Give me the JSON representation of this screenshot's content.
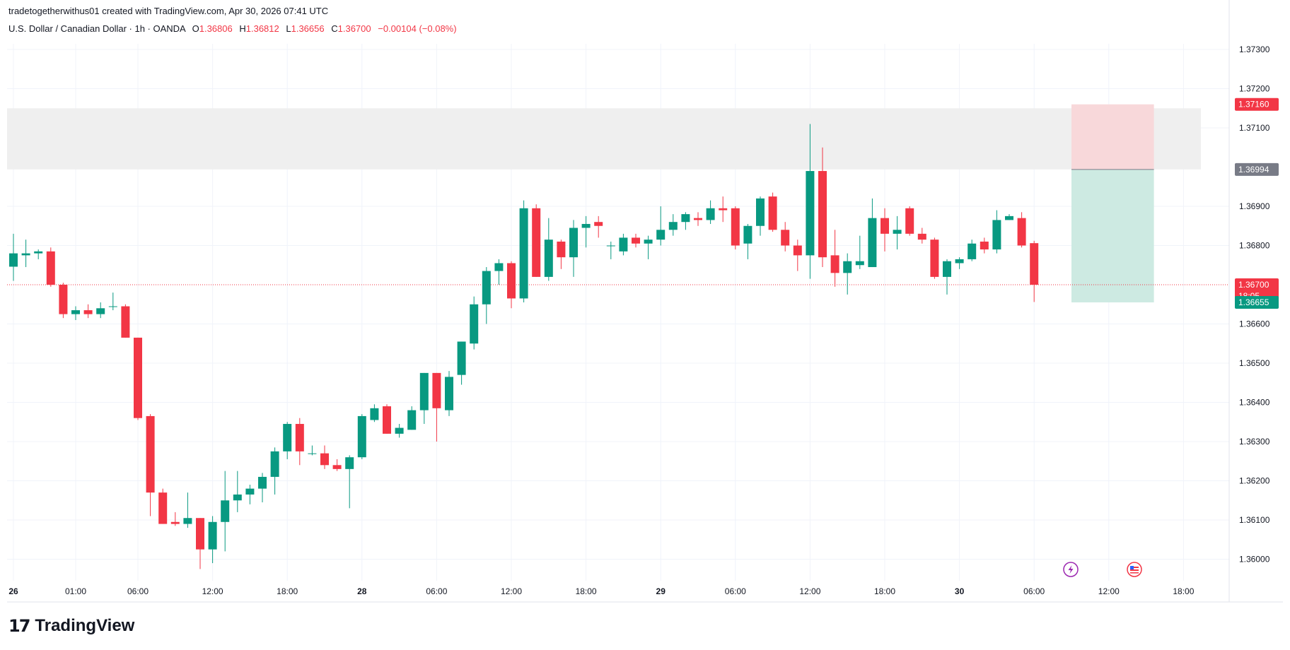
{
  "header": {
    "credit": "tradetogetherwithus01 created with TradingView.com, Apr 30, 2026 07:41 UTC"
  },
  "symbol": {
    "name": "U.S. Dollar / Canadian Dollar · 1h · OANDA",
    "o_label": "O",
    "o": "1.36806",
    "h_label": "H",
    "h": "1.36812",
    "l_label": "L",
    "l": "1.36656",
    "c_label": "C",
    "c": "1.36700",
    "change": "−0.00104 (−0.08%)"
  },
  "footer": {
    "brand": "TradingView"
  },
  "colors": {
    "up": "#089981",
    "down": "#f23645",
    "zone": "#efefef",
    "tp": "#cdeae2",
    "sl": "#f8d8da",
    "grid": "#f0f3fa",
    "axis_text": "#131722"
  },
  "chart_data": {
    "type": "candlestick",
    "ylim": [
      1.3597,
      1.3735
    ],
    "y_ticks": [
      "1.37300",
      "1.37200",
      "1.37100",
      "1.36900",
      "1.36800",
      "1.36600",
      "1.36500",
      "1.36400",
      "1.36300",
      "1.36200",
      "1.36100",
      "1.36000"
    ],
    "x_ticks": [
      {
        "label": "26",
        "i": 0,
        "bold": true
      },
      {
        "label": "01:00",
        "i": 5
      },
      {
        "label": "06:00",
        "i": 10
      },
      {
        "label": "12:00",
        "i": 16
      },
      {
        "label": "18:00",
        "i": 22
      },
      {
        "label": "28",
        "i": 28,
        "bold": true
      },
      {
        "label": "06:00",
        "i": 34
      },
      {
        "label": "12:00",
        "i": 40
      },
      {
        "label": "18:00",
        "i": 46
      },
      {
        "label": "29",
        "i": 52,
        "bold": true
      },
      {
        "label": "06:00",
        "i": 58
      },
      {
        "label": "12:00",
        "i": 64
      },
      {
        "label": "18:00",
        "i": 70
      },
      {
        "label": "30",
        "i": 76,
        "bold": true
      },
      {
        "label": "06:00",
        "i": 82
      },
      {
        "label": "12:00",
        "i": 88
      },
      {
        "label": "18:00",
        "i": 94
      }
    ],
    "candles": [
      [
        1.36746,
        1.3683,
        1.3671,
        1.3678
      ],
      [
        1.36775,
        1.36815,
        1.36745,
        1.3678
      ],
      [
        1.3678,
        1.3679,
        1.36765,
        1.36785
      ],
      [
        1.36785,
        1.36795,
        1.36695,
        1.367
      ],
      [
        1.367,
        1.36705,
        1.36615,
        1.36625
      ],
      [
        1.36625,
        1.36645,
        1.3661,
        1.36635
      ],
      [
        1.36635,
        1.3665,
        1.36615,
        1.36625
      ],
      [
        1.36625,
        1.36655,
        1.36615,
        1.3664
      ],
      [
        1.36645,
        1.3668,
        1.36635,
        1.36645
      ],
      [
        1.36645,
        1.3665,
        1.36565,
        1.36565
      ],
      [
        1.36565,
        1.36565,
        1.36355,
        1.3636
      ],
      [
        1.36365,
        1.3637,
        1.3611,
        1.3617
      ],
      [
        1.3617,
        1.3618,
        1.3609,
        1.3609
      ],
      [
        1.36095,
        1.3612,
        1.36085,
        1.3609
      ],
      [
        1.3609,
        1.3617,
        1.3608,
        1.36105
      ],
      [
        1.36105,
        1.36105,
        1.35975,
        1.36025
      ],
      [
        1.36025,
        1.3611,
        1.3599,
        1.36095
      ],
      [
        1.36095,
        1.36225,
        1.3602,
        1.3615
      ],
      [
        1.3615,
        1.36225,
        1.3612,
        1.36165
      ],
      [
        1.36165,
        1.3619,
        1.3614,
        1.3618
      ],
      [
        1.3618,
        1.3622,
        1.36145,
        1.3621
      ],
      [
        1.3621,
        1.36285,
        1.36165,
        1.36275
      ],
      [
        1.36275,
        1.3635,
        1.36255,
        1.36345
      ],
      [
        1.36345,
        1.3636,
        1.3624,
        1.36275
      ],
      [
        1.3627,
        1.3629,
        1.36265,
        1.3627
      ],
      [
        1.3627,
        1.3629,
        1.3623,
        1.3624
      ],
      [
        1.3624,
        1.36255,
        1.36225,
        1.3623
      ],
      [
        1.3623,
        1.36265,
        1.3613,
        1.3626
      ],
      [
        1.3626,
        1.3637,
        1.36255,
        1.36365
      ],
      [
        1.36355,
        1.36395,
        1.3635,
        1.36385
      ],
      [
        1.3639,
        1.36395,
        1.3632,
        1.3632
      ],
      [
        1.3632,
        1.36345,
        1.3631,
        1.36335
      ],
      [
        1.3633,
        1.3639,
        1.3633,
        1.3638
      ],
      [
        1.3638,
        1.36475,
        1.36345,
        1.36475
      ],
      [
        1.36475,
        1.36475,
        1.363,
        1.36385
      ],
      [
        1.3638,
        1.3648,
        1.36365,
        1.36465
      ],
      [
        1.3647,
        1.36555,
        1.36445,
        1.36555
      ],
      [
        1.3655,
        1.3667,
        1.36535,
        1.3665
      ],
      [
        1.3665,
        1.36745,
        1.366,
        1.36735
      ],
      [
        1.36735,
        1.36765,
        1.367,
        1.36755
      ],
      [
        1.36755,
        1.3676,
        1.3664,
        1.36665
      ],
      [
        1.36665,
        1.36915,
        1.36655,
        1.36895
      ],
      [
        1.36895,
        1.36905,
        1.3672,
        1.3672
      ],
      [
        1.3672,
        1.3687,
        1.3671,
        1.36815
      ],
      [
        1.3681,
        1.36815,
        1.3674,
        1.3677
      ],
      [
        1.3677,
        1.36865,
        1.3672,
        1.36845
      ],
      [
        1.36845,
        1.36875,
        1.36795,
        1.36855
      ],
      [
        1.3686,
        1.36875,
        1.3682,
        1.3685
      ],
      [
        1.368,
        1.3681,
        1.36765,
        1.368
      ],
      [
        1.36785,
        1.3683,
        1.36775,
        1.3682
      ],
      [
        1.3682,
        1.3683,
        1.36795,
        1.36805
      ],
      [
        1.36805,
        1.36825,
        1.36765,
        1.36815
      ],
      [
        1.36815,
        1.369,
        1.368,
        1.3684
      ],
      [
        1.3684,
        1.3688,
        1.36825,
        1.3686
      ],
      [
        1.3686,
        1.36885,
        1.3684,
        1.3688
      ],
      [
        1.3687,
        1.36885,
        1.3685,
        1.36865
      ],
      [
        1.36865,
        1.36915,
        1.36855,
        1.36895
      ],
      [
        1.36895,
        1.36925,
        1.3686,
        1.3689
      ],
      [
        1.36895,
        1.369,
        1.3679,
        1.368
      ],
      [
        1.36805,
        1.36855,
        1.36765,
        1.3685
      ],
      [
        1.3685,
        1.36925,
        1.36825,
        1.3692
      ],
      [
        1.36925,
        1.36935,
        1.36835,
        1.3684
      ],
      [
        1.3684,
        1.3686,
        1.36785,
        1.368
      ],
      [
        1.368,
        1.36815,
        1.36735,
        1.36775
      ],
      [
        1.36775,
        1.3711,
        1.36715,
        1.3699
      ],
      [
        1.3699,
        1.3705,
        1.36745,
        1.3677
      ],
      [
        1.36775,
        1.3684,
        1.36695,
        1.3673
      ],
      [
        1.3673,
        1.3678,
        1.36675,
        1.3676
      ],
      [
        1.3675,
        1.36825,
        1.3674,
        1.3676
      ],
      [
        1.36745,
        1.3692,
        1.36745,
        1.3687
      ],
      [
        1.3687,
        1.36895,
        1.36785,
        1.3683
      ],
      [
        1.3683,
        1.36875,
        1.3679,
        1.3684
      ],
      [
        1.36895,
        1.369,
        1.36825,
        1.3683
      ],
      [
        1.3683,
        1.36845,
        1.36805,
        1.36815
      ],
      [
        1.36815,
        1.3682,
        1.36715,
        1.3672
      ],
      [
        1.3672,
        1.36765,
        1.36675,
        1.3676
      ],
      [
        1.36755,
        1.3677,
        1.3674,
        1.36765
      ],
      [
        1.36765,
        1.36815,
        1.3676,
        1.36805
      ],
      [
        1.3681,
        1.3682,
        1.3678,
        1.3679
      ],
      [
        1.3679,
        1.3689,
        1.3678,
        1.36865
      ],
      [
        1.36865,
        1.3688,
        1.36865,
        1.36875
      ],
      [
        1.3687,
        1.36885,
        1.36795,
        1.368
      ],
      [
        1.36806,
        1.36812,
        1.36656,
        1.367
      ]
    ],
    "zone": {
      "from": 1.36994,
      "to": 1.3715
    },
    "position": {
      "entry": 1.36994,
      "stop": 1.3716,
      "target": 1.36655,
      "start_i": 85,
      "end_i": 91
    },
    "price_labels": [
      {
        "value": 1.3716,
        "text": "1.37160",
        "color": "#f23645"
      },
      {
        "value": 1.36994,
        "text": "1.36994",
        "color": "#787b86"
      },
      {
        "value": 1.367,
        "text": "1.36700",
        "sub": "18:05",
        "color": "#f23645"
      },
      {
        "value": 1.36655,
        "text": "1.36655",
        "color": "#089981"
      }
    ],
    "last_price": 1.367
  }
}
